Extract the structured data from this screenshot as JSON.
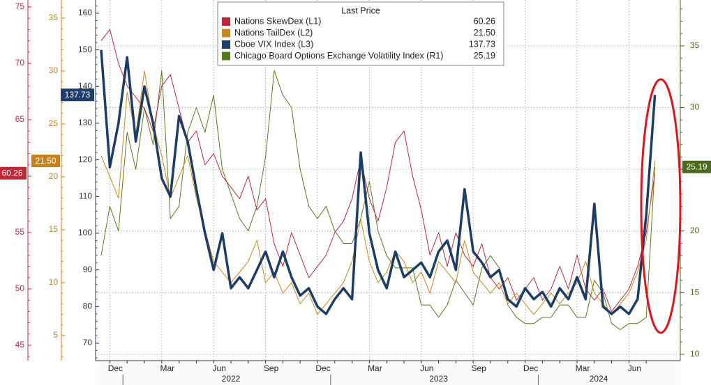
{
  "chart_data": {
    "type": "line",
    "legend_title": "Last Price",
    "categories": [
      null,
      "Dec",
      null,
      null,
      null,
      null,
      null,
      "Mar",
      null,
      null,
      null,
      null,
      null,
      "Jun",
      null,
      null,
      null,
      null,
      null,
      "Sep",
      null,
      null,
      null,
      null,
      null,
      "Dec",
      null,
      null,
      null,
      null,
      null,
      "Mar",
      null,
      null,
      null,
      null,
      null,
      "Jun",
      null,
      null,
      null,
      null,
      null,
      "Sep",
      null,
      null,
      null,
      null,
      null,
      "Dec",
      null,
      null,
      null,
      null,
      null,
      "Mar",
      null,
      null,
      null,
      null,
      null,
      "Jun",
      null,
      null,
      null
    ],
    "years": [
      "2022",
      "2023",
      "2024"
    ],
    "grid": true,
    "axes": [
      {
        "id": "L1",
        "side": "left",
        "color": "#c0283a",
        "ylim": [
          43.64,
          75.62
        ],
        "yticks": [
          45,
          50,
          55,
          60,
          65,
          70,
          75
        ]
      },
      {
        "id": "L2",
        "side": "left",
        "color": "#c8811a",
        "ylim": [
          2.63,
          36.71
        ],
        "yticks": [
          5,
          10,
          15,
          20,
          25,
          30,
          35
        ]
      },
      {
        "id": "L3",
        "side": "left",
        "color": "#1f3f6a",
        "ylim": [
          65.26,
          163.6
        ],
        "yticks": [
          70,
          80,
          90,
          100,
          110,
          120,
          130,
          140,
          150,
          160
        ]
      },
      {
        "id": "R1",
        "side": "right",
        "color": "#4a6a1e",
        "ylim": [
          9.49,
          38.72
        ],
        "yticks": [
          10,
          15,
          20,
          25,
          30,
          35
        ]
      }
    ],
    "series": [
      {
        "name": "Nations SkewDex  (L1)",
        "axis": "L1",
        "color": "#c0283a",
        "last_label": "60.26",
        "values": [
          72,
          73,
          70,
          68,
          67,
          66,
          64,
          68,
          69,
          66,
          63,
          64,
          61,
          62,
          60,
          59,
          58,
          60,
          57,
          58,
          54,
          52,
          55,
          53,
          51,
          52,
          53,
          55,
          56,
          58,
          61.5,
          58,
          56,
          59,
          63,
          64,
          60,
          57,
          53,
          55,
          52,
          55,
          53,
          52,
          54,
          51,
          50,
          51,
          49,
          50,
          51,
          49,
          50,
          52,
          50,
          53,
          50,
          49,
          50,
          48,
          49,
          50,
          52,
          55,
          60.26
        ]
      },
      {
        "name": "Nations TailDex  (L2)",
        "axis": "L2",
        "color": "#c88a1a",
        "last_label": "21.50",
        "values": [
          22,
          20,
          18,
          28,
          24,
          30,
          25,
          22,
          18,
          20,
          22,
          18,
          15,
          12,
          11,
          10,
          11,
          12,
          14,
          10,
          11,
          9,
          10,
          8,
          9,
          7,
          8,
          9,
          10,
          12,
          16,
          12,
          10,
          11,
          13,
          12,
          10,
          11,
          9,
          12,
          11,
          10,
          14,
          11,
          10,
          9,
          10,
          8,
          9,
          8,
          7,
          8,
          9,
          8,
          9,
          10,
          12,
          9,
          8,
          7,
          8,
          9,
          11,
          14,
          21.5
        ]
      },
      {
        "name": "Cboe VIX Index  (L3)",
        "axis": "L3",
        "color": "#1d3d66",
        "last_label": "137.73",
        "values": [
          150,
          118,
          130,
          148,
          125,
          140,
          130,
          115,
          110,
          132,
          125,
          112,
          100,
          90,
          100,
          85,
          88,
          85,
          90,
          95,
          88,
          95,
          88,
          83,
          85,
          80,
          78,
          82,
          85,
          82,
          122,
          100,
          90,
          85,
          95,
          88,
          90,
          92,
          88,
          95,
          98,
          90,
          112,
          95,
          92,
          88,
          90,
          82,
          80,
          85,
          82,
          84,
          80,
          85,
          82,
          88,
          82,
          108,
          80,
          78,
          80,
          78,
          82,
          105,
          137.73
        ]
      },
      {
        "name": "Chicago Board Options Exchange Volatility Index  (R1)",
        "axis": "R1",
        "color": "#557a1e",
        "last_label": "25.19",
        "values": [
          18,
          22,
          20,
          28,
          25,
          30,
          27,
          33,
          21,
          22,
          28,
          30,
          28,
          31,
          25,
          23,
          21,
          20,
          22,
          26,
          33,
          31,
          30,
          25,
          22,
          21,
          22,
          20,
          19,
          19,
          21,
          24,
          20,
          18,
          17,
          17,
          17,
          14,
          14,
          13,
          14,
          16,
          15,
          14,
          17,
          18,
          17,
          14,
          13,
          12.5,
          12.5,
          13,
          13,
          14,
          14,
          13,
          13,
          16,
          15,
          12.5,
          12,
          12.5,
          12.5,
          13,
          25.19
        ]
      }
    ]
  }
}
